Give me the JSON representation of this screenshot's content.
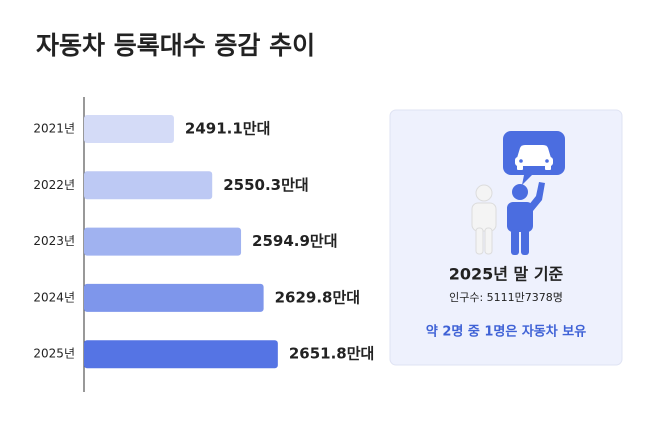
{
  "chart_data": {
    "type": "hbar",
    "title": "자동차 등록대수 증감 추이",
    "categories": [
      "2021년",
      "2022년",
      "2023년",
      "2024년",
      "2025년"
    ],
    "values": [
      2491.1,
      2550.3,
      2594.9,
      2629.8,
      2651.8
    ],
    "value_labels": [
      "2491.1만대",
      "2550.3만대",
      "2594.9만대",
      "2629.8만대",
      "2651.8만대"
    ],
    "colors": [
      "#d4dbf7",
      "#bdc9f4",
      "#a0b2f0",
      "#7e96eb",
      "#5574e4"
    ],
    "xlim": [
      2352,
      2700
    ]
  },
  "card": {
    "title": "2025년 말 기준",
    "subtitle": "인구수: 5111만7378명",
    "note": "약 2명 중 1명은 자동차 보유"
  }
}
